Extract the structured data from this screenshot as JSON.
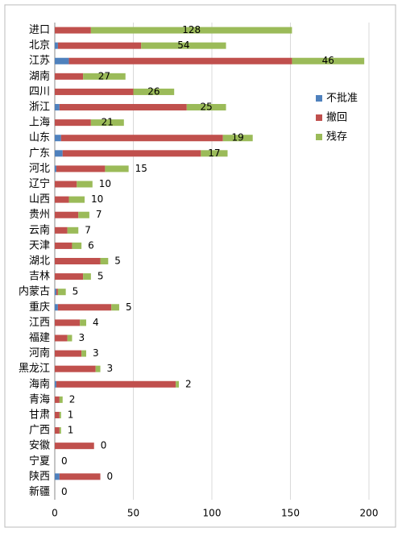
{
  "chart_data": {
    "type": "stacked-bar-horizontal",
    "categories": [
      "进口",
      "北京",
      "江苏",
      "湖南",
      "四川",
      "浙江",
      "上海",
      "山东",
      "广东",
      "河北",
      "辽宁",
      "山西",
      "贵州",
      "云南",
      "天津",
      "湖北",
      "吉林",
      "内蒙古",
      "重庆",
      "江西",
      "福建",
      "河南",
      "黑龙江",
      "海南",
      "青海",
      "甘肃",
      "广西",
      "安徽",
      "宁夏",
      "陕西",
      "新疆"
    ],
    "series": [
      {
        "name": "不批准",
        "color": "#4f81bd",
        "values": [
          0,
          2,
          9,
          0,
          0,
          3,
          0,
          4,
          5,
          1,
          0,
          0,
          0,
          0,
          0,
          0,
          0,
          1,
          2,
          0,
          0,
          0,
          0,
          1,
          0,
          0,
          0,
          0,
          0,
          3,
          0
        ]
      },
      {
        "name": "撤回",
        "color": "#c0504d",
        "values": [
          23,
          53,
          142,
          18,
          50,
          81,
          23,
          103,
          88,
          31,
          14,
          9,
          15,
          8,
          11,
          29,
          18,
          1,
          34,
          16,
          8,
          17,
          26,
          76,
          3,
          3,
          3,
          25,
          0,
          26,
          0
        ]
      },
      {
        "name": "残存",
        "color": "#9bbb59",
        "values": [
          128,
          54,
          46,
          27,
          26,
          25,
          21,
          19,
          17,
          15,
          10,
          10,
          7,
          7,
          6,
          5,
          5,
          5,
          5,
          4,
          3,
          3,
          3,
          2,
          2,
          1,
          1,
          0,
          0,
          0,
          0
        ]
      }
    ],
    "xlim": [
      0,
      200
    ],
    "xticks": [
      0,
      50,
      100,
      150,
      200
    ],
    "grid": true,
    "legend": "right"
  }
}
